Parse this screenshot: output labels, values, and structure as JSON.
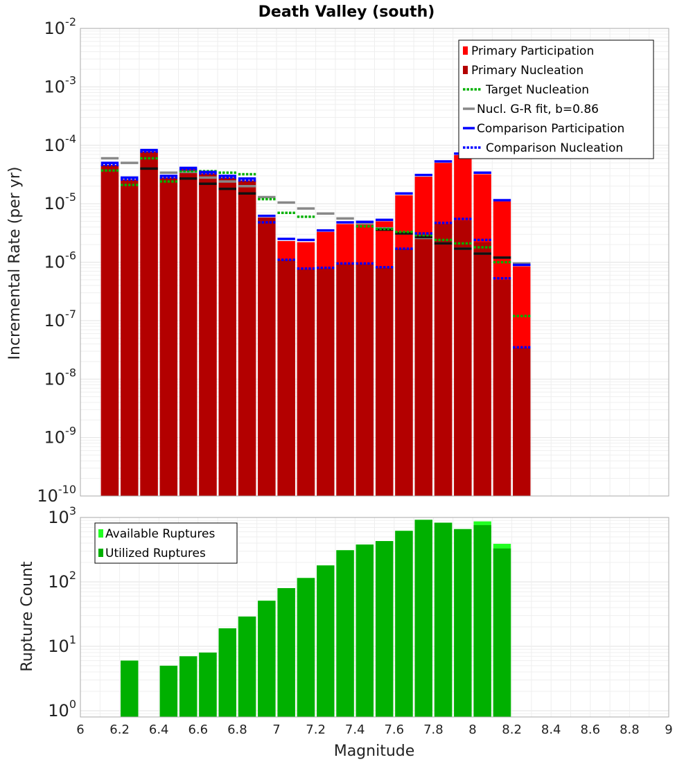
{
  "chart_data": [
    {
      "type": "bar",
      "title": "Death Valley (south)",
      "xlabel": "",
      "ylabel": "Incremental Rate (per yr)",
      "yscale": "log",
      "ylim": [
        1e-10,
        0.01
      ],
      "xlim": [
        6,
        9
      ],
      "y_tick_exponents": [
        "-10",
        "-9",
        "-8",
        "-7",
        "-6",
        "-5",
        "-4",
        "-3",
        "-2"
      ],
      "y_tick_base": "10",
      "grid": true,
      "legend_position": "top-right",
      "x": [
        6.15,
        6.25,
        6.35,
        6.45,
        6.55,
        6.65,
        6.75,
        6.85,
        6.95,
        7.05,
        7.15,
        7.25,
        7.35,
        7.45,
        7.55,
        7.65,
        7.75,
        7.85,
        7.95,
        8.05,
        8.15,
        8.25
      ],
      "series": [
        {
          "name": "Primary Participation",
          "style": "bar",
          "color": "#ff0000",
          "values": [
            4.6e-05,
            2.6e-05,
            7.8e-05,
            2.8e-05,
            3.9e-05,
            3.3e-05,
            2.8e-05,
            2.5e-05,
            5.8e-06,
            2.3e-06,
            2.2e-06,
            3.3e-06,
            4.5e-06,
            4.6e-06,
            5e-06,
            1.4e-05,
            2.9e-05,
            5e-05,
            6.8e-05,
            3.2e-05,
            1.1e-05,
            8.5e-07
          ]
        },
        {
          "name": "Primary Nucleation",
          "style": "bar",
          "color": "#b30000",
          "values": [
            4.6e-05,
            2.6e-05,
            7.8e-05,
            2.8e-05,
            3.9e-05,
            3.3e-05,
            2.8e-05,
            2.5e-05,
            5.8e-06,
            1.1e-06,
            7.5e-07,
            7.8e-07,
            9.2e-07,
            9.2e-07,
            8e-07,
            1.7e-06,
            3e-06,
            4.5e-06,
            5.2e-06,
            2.2e-06,
            5e-07,
            3.4e-08
          ]
        },
        {
          "name": "Target Nucleation",
          "style": "dotted",
          "color": "#00b000",
          "values": [
            3.7e-05,
            2.1e-05,
            6e-05,
            2.4e-05,
            3.6e-05,
            3.6e-05,
            3.4e-05,
            3.2e-05,
            1.2e-05,
            7e-06,
            6e-06,
            null,
            null,
            4.1e-06,
            3.7e-06,
            3.3e-06,
            2.9e-06,
            2.4e-06,
            2.1e-06,
            1.8e-06,
            1e-06,
            1.2e-07
          ]
        },
        {
          "name": "Nucl. G-R fit, b=0.86",
          "style": "dash",
          "color": "#888888",
          "values": [
            6e-05,
            5e-05,
            null,
            3.4e-05,
            3.5e-05,
            2.8e-05,
            2.4e-05,
            2e-05,
            1.3e-05,
            1.05e-05,
            8.3e-06,
            6.8e-06,
            5.6e-06,
            4.6e-06,
            3.8e-06,
            3.1e-06,
            2.6e-06,
            2.1e-06,
            1.7e-06,
            1.4e-06,
            1.2e-06,
            9.5e-07
          ]
        },
        {
          "name": "Comparison Participation",
          "style": "dash",
          "color": "#0000ff",
          "values": [
            5e-05,
            2.8e-05,
            8.3e-05,
            3e-05,
            4.1e-05,
            3.5e-05,
            3e-05,
            2.7e-05,
            6.2e-06,
            2.5e-06,
            2.4e-06,
            3.5e-06,
            4.8e-06,
            4.9e-06,
            5.3e-06,
            1.5e-05,
            3.1e-05,
            5.3e-05,
            7.2e-05,
            3.4e-05,
            1.15e-05,
            9e-07
          ]
        },
        {
          "name": "Comparison Nucleation",
          "style": "dotted",
          "color": "#0000ff",
          "values": [
            4.6e-05,
            2.6e-05,
            7.8e-05,
            2.8e-05,
            3.9e-05,
            3.3e-05,
            2.8e-05,
            2.5e-05,
            4.8e-06,
            1.1e-06,
            7.8e-07,
            8e-07,
            9.5e-07,
            9.5e-07,
            8.2e-07,
            1.7e-06,
            3.1e-06,
            4.7e-06,
            5.5e-06,
            2.4e-06,
            5.3e-07,
            3.5e-08
          ]
        },
        {
          "name": "",
          "style": "dash",
          "color": "#111111",
          "values": [
            null,
            null,
            4e-05,
            null,
            2.7e-05,
            2.2e-05,
            1.8e-05,
            1.5e-05,
            null,
            null,
            null,
            null,
            null,
            null,
            3.6e-06,
            3.1e-06,
            2.7e-06,
            2.1e-06,
            1.7e-06,
            1.4e-06,
            1.2e-06,
            null
          ]
        }
      ]
    },
    {
      "type": "bar",
      "title": "",
      "xlabel": "Magnitude",
      "ylabel": "Rupture Count",
      "yscale": "log",
      "ylim": [
        0.8,
        1000
      ],
      "xlim": [
        6,
        9
      ],
      "y_tick_exponents": [
        "0",
        "1",
        "2",
        "3"
      ],
      "y_tick_base": "10",
      "x_ticks": [
        "6",
        "6.2",
        "6.4",
        "6.6",
        "6.8",
        "7",
        "7.2",
        "7.4",
        "7.6",
        "7.8",
        "8",
        "8.2",
        "8.4",
        "8.6",
        "8.8",
        "9"
      ],
      "grid": true,
      "legend_position": "top-left",
      "x": [
        6.25,
        6.45,
        6.55,
        6.65,
        6.75,
        6.85,
        6.95,
        7.05,
        7.15,
        7.25,
        7.35,
        7.45,
        7.55,
        7.65,
        7.75,
        7.85,
        7.95,
        8.05,
        8.15
      ],
      "series": [
        {
          "name": "Available Ruptures",
          "color": "#22ff22",
          "values": [
            6,
            5,
            7,
            8,
            19,
            29,
            51,
            80,
            115,
            180,
            310,
            380,
            430,
            620,
            920,
            830,
            660,
            870,
            390
          ]
        },
        {
          "name": "Utilized Ruptures",
          "color": "#00b000",
          "values": [
            6,
            5,
            7,
            8,
            19,
            29,
            51,
            80,
            115,
            180,
            310,
            380,
            430,
            620,
            920,
            830,
            660,
            760,
            330
          ]
        }
      ]
    }
  ]
}
